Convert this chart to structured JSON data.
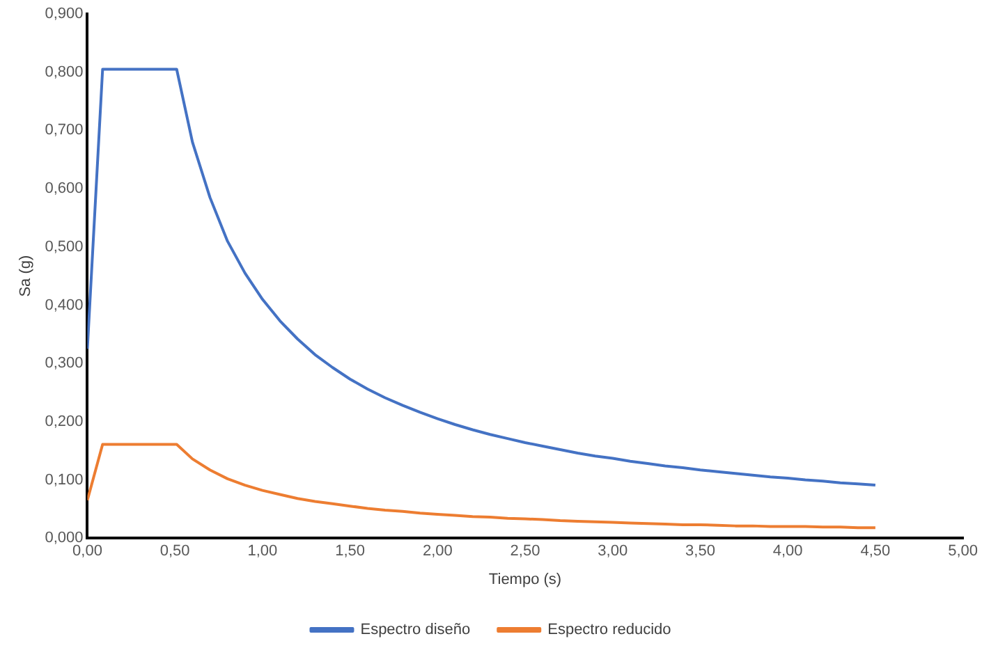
{
  "chart_data": {
    "type": "line",
    "xlabel": "Tiempo (s)",
    "ylabel": "Sa (g)",
    "x": [
      0,
      0.087,
      0.51,
      0.6,
      0.7,
      0.8,
      0.9,
      1.0,
      1.1,
      1.2,
      1.3,
      1.4,
      1.5,
      1.6,
      1.7,
      1.8,
      1.9,
      2.0,
      2.1,
      2.2,
      2.3,
      2.4,
      2.5,
      2.6,
      2.7,
      2.8,
      2.9,
      3.0,
      3.1,
      3.2,
      3.3,
      3.4,
      3.5,
      3.6,
      3.7,
      3.8,
      3.9,
      4.0,
      4.1,
      4.2,
      4.3,
      4.4,
      4.5
    ],
    "series": [
      {
        "name": "Espectro diseño",
        "color": "#4472c4",
        "values": [
          0.325,
          0.805,
          0.805,
          0.68,
          0.585,
          0.51,
          0.455,
          0.41,
          0.373,
          0.342,
          0.315,
          0.293,
          0.273,
          0.256,
          0.241,
          0.228,
          0.216,
          0.205,
          0.195,
          0.186,
          0.178,
          0.171,
          0.164,
          0.158,
          0.152,
          0.146,
          0.141,
          0.137,
          0.132,
          0.128,
          0.124,
          0.121,
          0.117,
          0.114,
          0.111,
          0.108,
          0.105,
          0.103,
          0.1,
          0.098,
          0.095,
          0.093,
          0.091
        ]
      },
      {
        "name": "Espectro reducido",
        "color": "#ed7d31",
        "values": [
          0.065,
          0.161,
          0.161,
          0.136,
          0.117,
          0.102,
          0.091,
          0.082,
          0.075,
          0.068,
          0.063,
          0.059,
          0.055,
          0.051,
          0.048,
          0.046,
          0.043,
          0.041,
          0.039,
          0.037,
          0.036,
          0.034,
          0.033,
          0.032,
          0.03,
          0.029,
          0.028,
          0.027,
          0.026,
          0.025,
          0.024,
          0.023,
          0.023,
          0.022,
          0.021,
          0.021,
          0.02,
          0.02,
          0.02,
          0.019,
          0.019,
          0.018,
          0.018
        ]
      }
    ],
    "xlim": [
      0,
      5
    ],
    "xticks": [
      {
        "value": 0,
        "label": "0,00"
      },
      {
        "value": 0.5,
        "label": "0,50"
      },
      {
        "value": 1,
        "label": "1,00"
      },
      {
        "value": 1.5,
        "label": "1,50"
      },
      {
        "value": 2,
        "label": "2,00"
      },
      {
        "value": 2.5,
        "label": "2,50"
      },
      {
        "value": 3,
        "label": "3,00"
      },
      {
        "value": 3.5,
        "label": "3,50"
      },
      {
        "value": 4,
        "label": "4,00"
      },
      {
        "value": 4.5,
        "label": "4,50"
      },
      {
        "value": 5,
        "label": "5,00"
      }
    ],
    "ylim": [
      0,
      0.9
    ],
    "yticks": [
      {
        "value": 0,
        "label": "0,000"
      },
      {
        "value": 0.1,
        "label": "0,100"
      },
      {
        "value": 0.2,
        "label": "0,200"
      },
      {
        "value": 0.3,
        "label": "0,300"
      },
      {
        "value": 0.4,
        "label": "0,400"
      },
      {
        "value": 0.5,
        "label": "0,500"
      },
      {
        "value": 0.6,
        "label": "0,600"
      },
      {
        "value": 0.7,
        "label": "0,700"
      },
      {
        "value": 0.8,
        "label": "0,800"
      },
      {
        "value": 0.9,
        "label": "0,900"
      }
    ],
    "grid": false,
    "legend": "bottom",
    "marker": "none",
    "line_style": "solid"
  }
}
